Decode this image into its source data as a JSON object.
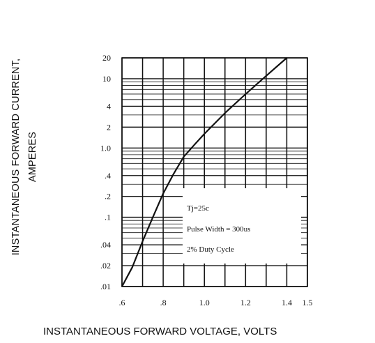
{
  "chart_data": {
    "type": "line",
    "title": "",
    "xlabel": "INSTANTANEOUS FORWARD VOLTAGE, VOLTS",
    "ylabel": [
      "INSTANTANEOUS FORWARD CURRENT,",
      "AMPERES"
    ],
    "x_scale": "linear",
    "y_scale": "log",
    "xlim": [
      0.6,
      1.5
    ],
    "ylim": [
      0.01,
      20
    ],
    "x_ticks": [
      {
        "value": 0.6,
        "label": ".6"
      },
      {
        "value": 0.8,
        "label": ".8"
      },
      {
        "value": 1.0,
        "label": "1.0"
      },
      {
        "value": 1.2,
        "label": "1.2"
      },
      {
        "value": 1.4,
        "label": "1.4"
      },
      {
        "value": 1.5,
        "label": "1.5"
      }
    ],
    "y_ticks": [
      {
        "value": 20,
        "label": "20"
      },
      {
        "value": 10,
        "label": "10"
      },
      {
        "value": 4,
        "label": "4"
      },
      {
        "value": 2,
        "label": "2"
      },
      {
        "value": 1.0,
        "label": "1.0"
      },
      {
        "value": 0.4,
        "label": ".4"
      },
      {
        "value": 0.2,
        "label": ".2"
      },
      {
        "value": 0.1,
        "label": ".1"
      },
      {
        "value": 0.04,
        "label": ".04"
      },
      {
        "value": 0.02,
        "label": ".02"
      },
      {
        "value": 0.01,
        "label": ".01"
      }
    ],
    "grid": true,
    "x_grid": [
      0.6,
      0.7,
      0.8,
      0.9,
      1.0,
      1.1,
      1.2,
      1.3,
      1.4,
      1.5
    ],
    "y_grid": [
      0.01,
      0.02,
      0.03,
      0.04,
      0.05,
      0.06,
      0.07,
      0.08,
      0.09,
      0.1,
      0.2,
      0.3,
      0.4,
      0.5,
      0.6,
      0.7,
      0.8,
      0.9,
      1,
      2,
      3,
      4,
      5,
      6,
      7,
      8,
      9,
      10,
      20
    ],
    "series": [
      {
        "x": [
          0.6,
          0.65,
          0.7,
          0.75,
          0.8,
          0.85,
          0.9,
          0.95,
          1.0,
          1.1,
          1.2,
          1.3,
          1.4
        ],
        "y": [
          0.01,
          0.019,
          0.045,
          0.1,
          0.22,
          0.42,
          0.75,
          1.1,
          1.6,
          3.2,
          6.0,
          11.0,
          20.0
        ]
      }
    ],
    "annotations": [
      "Tj=25c",
      "Pulse Width = 300us",
      "2% Duty Cycle"
    ],
    "line_color": "#111111"
  }
}
